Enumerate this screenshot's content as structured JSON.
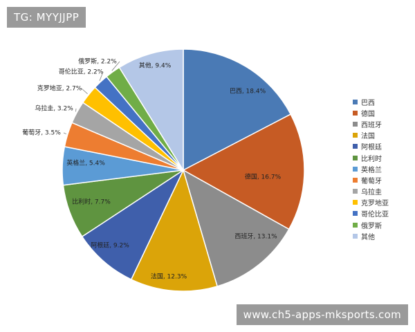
{
  "watermark_top": "TG: MYYJJPP",
  "watermark_bottom": "www.ch5-apps-mksports.com",
  "chart_data": {
    "type": "pie",
    "categories": [
      "巴西",
      "德国",
      "西班牙",
      "法国",
      "阿根廷",
      "比利时",
      "英格兰",
      "葡萄牙",
      "乌拉圭",
      "克罗地亚",
      "哥伦比亚",
      "俄罗斯",
      "其他"
    ],
    "values": [
      18.4,
      16.7,
      13.1,
      12.3,
      9.2,
      7.7,
      5.4,
      3.5,
      3.2,
      2.7,
      2.2,
      2.2,
      9.4
    ],
    "labels": [
      "巴西, 18.4%",
      "德国, 16.7%",
      "西班牙, 13.1%",
      "法国, 12.3%",
      "阿根廷, 9.2%",
      "比利时, 7.7%",
      "英格兰, 5.4%",
      "葡萄牙, 3.5%",
      "乌拉圭, 3.2%",
      "克罗地亚, 2.7%",
      "哥伦比亚, 2.2%",
      "俄罗斯, 2.2%",
      "其他, 9.4%"
    ],
    "colors": [
      "#4a7ab5",
      "#c65b24",
      "#8c8c8c",
      "#dba409",
      "#3f5fab",
      "#5f9440",
      "#5b9bd5",
      "#ed7d31",
      "#a5a5a5",
      "#ffc000",
      "#4472c4",
      "#70ad47",
      "#b4c7e7"
    ],
    "legend_position": "right"
  }
}
